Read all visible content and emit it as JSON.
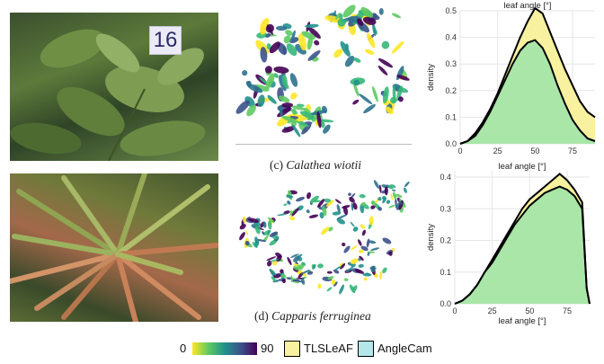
{
  "photo_tag": "16",
  "captions": {
    "top": {
      "prefix": "(c) ",
      "species": "Calathea wiotii"
    },
    "bottom": {
      "prefix": "(d) ",
      "species": "Capparis ferruginea"
    }
  },
  "legend": {
    "colorbar_min": "0",
    "colorbar_max": "90",
    "tls_label": "TLSLeAF",
    "anglecam_label": "AngleCam",
    "tls_color": "#f7f1a0",
    "anglecam_color": "#b4e7ea",
    "overlap_color": "#a9e6a8"
  },
  "chart_data": [
    {
      "type": "area",
      "title": "leaf angle [°]",
      "xlabel": "",
      "ylabel": "density",
      "xlim": [
        0,
        90
      ],
      "ylim": [
        0,
        0.5
      ],
      "xticks": [
        "0",
        "25",
        "50",
        "75"
      ],
      "yticks": [
        "0.0",
        "0.1",
        "0.2",
        "0.3",
        "0.4",
        "0.5"
      ],
      "grid": true,
      "series": [
        {
          "name": "TLSLeAF",
          "color": "#f7f1a0",
          "x": [
            0,
            5,
            10,
            15,
            20,
            25,
            30,
            35,
            40,
            45,
            50,
            55,
            60,
            65,
            70,
            75,
            80,
            85,
            90
          ],
          "y": [
            0.0,
            0.01,
            0.04,
            0.08,
            0.13,
            0.19,
            0.26,
            0.33,
            0.4,
            0.46,
            0.51,
            0.49,
            0.42,
            0.35,
            0.28,
            0.22,
            0.16,
            0.12,
            0.1
          ]
        },
        {
          "name": "AngleCam",
          "color": "#b4e7ea",
          "x": [
            0,
            5,
            10,
            15,
            20,
            25,
            30,
            35,
            40,
            45,
            50,
            55,
            60,
            65,
            70,
            75,
            80,
            85,
            90
          ],
          "y": [
            0.0,
            0.01,
            0.03,
            0.07,
            0.12,
            0.18,
            0.24,
            0.3,
            0.35,
            0.38,
            0.39,
            0.36,
            0.3,
            0.22,
            0.15,
            0.09,
            0.05,
            0.02,
            0.01
          ]
        }
      ]
    },
    {
      "type": "area",
      "title": "leaf angle [°]",
      "xlabel": "leaf angle [°]",
      "ylabel": "density",
      "xlim": [
        0,
        90
      ],
      "ylim": [
        0,
        0.42
      ],
      "xticks": [
        "0",
        "25",
        "50",
        "75"
      ],
      "yticks": [
        "0.0",
        "0.1",
        "0.2",
        "0.3",
        "0.4"
      ],
      "grid": true,
      "series": [
        {
          "name": "TLSLeAF",
          "color": "#f7f1a0",
          "x": [
            0,
            5,
            10,
            15,
            20,
            25,
            30,
            35,
            40,
            45,
            50,
            55,
            60,
            65,
            70,
            75,
            80,
            85,
            88,
            90
          ],
          "y": [
            0.0,
            0.01,
            0.03,
            0.06,
            0.1,
            0.14,
            0.18,
            0.22,
            0.26,
            0.3,
            0.33,
            0.35,
            0.37,
            0.39,
            0.41,
            0.39,
            0.36,
            0.32,
            0.05,
            0.0
          ]
        },
        {
          "name": "AngleCam",
          "color": "#b4e7ea",
          "x": [
            0,
            5,
            10,
            15,
            20,
            25,
            30,
            35,
            40,
            45,
            50,
            55,
            60,
            65,
            70,
            75,
            80,
            85,
            88,
            90
          ],
          "y": [
            0.0,
            0.01,
            0.03,
            0.06,
            0.1,
            0.13,
            0.17,
            0.21,
            0.25,
            0.28,
            0.31,
            0.33,
            0.35,
            0.36,
            0.37,
            0.36,
            0.34,
            0.3,
            0.05,
            0.0
          ]
        }
      ]
    }
  ]
}
